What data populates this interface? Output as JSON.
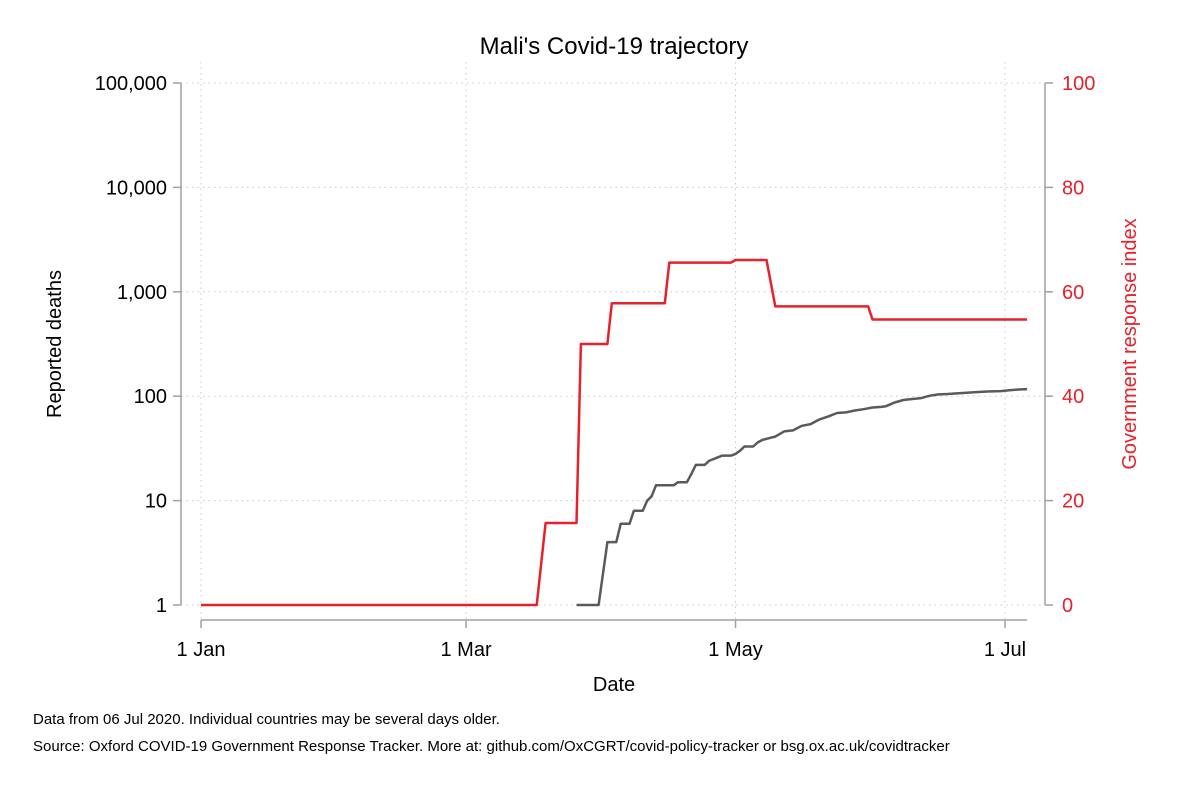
{
  "chart_data": {
    "type": "line",
    "title": "Mali's Covid-19 trajectory",
    "xlabel": "Date",
    "ylabel": "Reported deaths",
    "y2label": "Government response index",
    "x_ticks": [
      {
        "date": "2020-01-01",
        "label": "1 Jan"
      },
      {
        "date": "2020-03-01",
        "label": "1 Mar"
      },
      {
        "date": "2020-05-01",
        "label": "1 May"
      },
      {
        "date": "2020-07-01",
        "label": "1 Jul"
      }
    ],
    "xlim": [
      "2020-01-01",
      "2020-07-06"
    ],
    "y_scale": "log",
    "ylim": [
      1,
      100000
    ],
    "y_ticks": [
      {
        "value": 1,
        "label": "1"
      },
      {
        "value": 10,
        "label": "10"
      },
      {
        "value": 100,
        "label": "100"
      },
      {
        "value": 1000,
        "label": "1,000"
      },
      {
        "value": 10000,
        "label": "10,000"
      },
      {
        "value": 100000,
        "label": "100,000"
      }
    ],
    "y2lim": [
      0,
      100
    ],
    "y2_ticks": [
      {
        "value": 0,
        "label": "0"
      },
      {
        "value": 20,
        "label": "20"
      },
      {
        "value": 40,
        "label": "40"
      },
      {
        "value": 60,
        "label": "60"
      },
      {
        "value": 80,
        "label": "80"
      },
      {
        "value": 100,
        "label": "100"
      }
    ],
    "grid": true,
    "series": [
      {
        "axis": "left",
        "color": "#5a5a5a",
        "points": [
          [
            "2020-03-26",
            1
          ],
          [
            "2020-03-31",
            1
          ],
          [
            "2020-04-01",
            2
          ],
          [
            "2020-04-02",
            4
          ],
          [
            "2020-04-04",
            4
          ],
          [
            "2020-04-05",
            6
          ],
          [
            "2020-04-07",
            6
          ],
          [
            "2020-04-08",
            8
          ],
          [
            "2020-04-10",
            8
          ],
          [
            "2020-04-11",
            10
          ],
          [
            "2020-04-12",
            11
          ],
          [
            "2020-04-13",
            14
          ],
          [
            "2020-04-17",
            14
          ],
          [
            "2020-04-18",
            15
          ],
          [
            "2020-04-20",
            15
          ],
          [
            "2020-04-21",
            18
          ],
          [
            "2020-04-22",
            22
          ],
          [
            "2020-04-24",
            22
          ],
          [
            "2020-04-25",
            24
          ],
          [
            "2020-04-26",
            25
          ],
          [
            "2020-04-27",
            26
          ],
          [
            "2020-04-28",
            27
          ],
          [
            "2020-04-30",
            27
          ],
          [
            "2020-05-01",
            28
          ],
          [
            "2020-05-02",
            30
          ],
          [
            "2020-05-03",
            33
          ],
          [
            "2020-05-05",
            33
          ],
          [
            "2020-05-06",
            36
          ],
          [
            "2020-05-07",
            38
          ],
          [
            "2020-05-09",
            40
          ],
          [
            "2020-05-10",
            41
          ],
          [
            "2020-05-12",
            46
          ],
          [
            "2020-05-14",
            47
          ],
          [
            "2020-05-16",
            52
          ],
          [
            "2020-05-18",
            54
          ],
          [
            "2020-05-20",
            60
          ],
          [
            "2020-05-22",
            64
          ],
          [
            "2020-05-24",
            69
          ],
          [
            "2020-05-26",
            70
          ],
          [
            "2020-05-28",
            73
          ],
          [
            "2020-05-30",
            75
          ],
          [
            "2020-06-01",
            78
          ],
          [
            "2020-06-03",
            79
          ],
          [
            "2020-06-04",
            80
          ],
          [
            "2020-06-06",
            87
          ],
          [
            "2020-06-08",
            92
          ],
          [
            "2020-06-10",
            94
          ],
          [
            "2020-06-12",
            96
          ],
          [
            "2020-06-14",
            101
          ],
          [
            "2020-06-16",
            104
          ],
          [
            "2020-06-18",
            105
          ],
          [
            "2020-06-21",
            107
          ],
          [
            "2020-06-24",
            109
          ],
          [
            "2020-06-27",
            111
          ],
          [
            "2020-06-30",
            112
          ],
          [
            "2020-07-02",
            114
          ],
          [
            "2020-07-04",
            116
          ],
          [
            "2020-07-06",
            117
          ]
        ]
      },
      {
        "axis": "right",
        "color": "#e8202a",
        "points": [
          [
            "2020-01-01",
            0
          ],
          [
            "2020-03-17",
            0
          ],
          [
            "2020-03-19",
            15.7
          ],
          [
            "2020-03-26",
            15.7
          ],
          [
            "2020-03-27",
            50
          ],
          [
            "2020-04-02",
            50
          ],
          [
            "2020-04-03",
            57.8
          ],
          [
            "2020-04-15",
            57.8
          ],
          [
            "2020-04-16",
            65.6
          ],
          [
            "2020-04-30",
            65.6
          ],
          [
            "2020-05-01",
            66.1
          ],
          [
            "2020-05-08",
            66.1
          ],
          [
            "2020-05-10",
            57.2
          ],
          [
            "2020-05-31",
            57.2
          ],
          [
            "2020-06-01",
            54.7
          ],
          [
            "2020-07-06",
            54.7
          ]
        ]
      }
    ]
  },
  "notes": [
    "Data from 06 Jul 2020. Individual countries may be several days older.",
    "Source: Oxford COVID-19 Government Response Tracker. More at: github.com/OxCGRT/covid-policy-tracker or bsg.ox.ac.uk/covidtracker"
  ],
  "colors": {
    "deaths_line": "#5a5a5a",
    "response_line": "#e8202a",
    "axis": "#a0a0a0",
    "grid": "#c8c8c8"
  }
}
